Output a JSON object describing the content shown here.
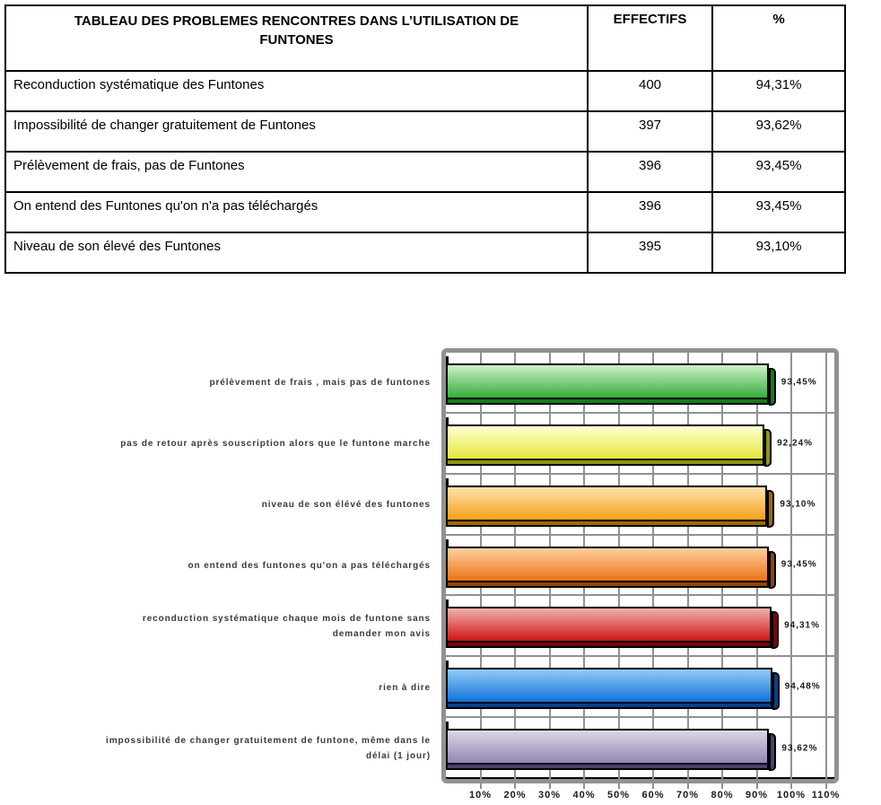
{
  "table": {
    "title_lines": [
      "TABLEAU DES PROBLEMES RENCONTRES DANS L’UTILISATION DE",
      "FUNTONES"
    ],
    "header_effectifs": "EFFECTIFS",
    "header_percent": "%",
    "rows": [
      {
        "label": "Reconduction systématique des Funtones",
        "effectif": "400",
        "percent": "94,31%"
      },
      {
        "label": "Impossibilité de changer gratuitement de Funtones",
        "effectif": "397",
        "percent": "93,62%"
      },
      {
        "label": "Prélèvement de frais, pas de Funtones",
        "effectif": "396",
        "percent": "93,45%"
      },
      {
        "label": "On entend des Funtones qu'on n'a pas téléchargés",
        "effectif": "396",
        "percent": "93,45%"
      },
      {
        "label": "Niveau de son élevé des Funtones",
        "effectif": "395",
        "percent": "93,10%"
      }
    ]
  },
  "chart_data": {
    "type": "bar",
    "orientation": "horizontal",
    "title": "",
    "xlabel": "",
    "ylabel": "",
    "xlim": [
      0,
      112.5
    ],
    "grid": "both",
    "legend": "none",
    "frame_color": "#919191",
    "gridline_color": "#919191",
    "x_ticks": [
      "10%",
      "20%",
      "30%",
      "40%",
      "50%",
      "60%",
      "70%",
      "80%",
      "90%",
      "100%",
      "110%"
    ],
    "categories": [
      "prélèvement de frais , mais pas de funtones",
      "pas de retour après souscription alors que le funtone marche",
      "niveau de son élévé des funtones",
      "on entend des funtones qu'on a pas téléchargés",
      "reconduction systématique chaque mois de funtone sans demander mon avis",
      "rien à dire",
      "impossibilité de changer gratuitement de funtone, même dans le délai (1 jour)"
    ],
    "category_label_lines": [
      [
        "prélèvement de frais , mais pas de funtones"
      ],
      [
        "pas de retour après souscription alors que le funtone marche"
      ],
      [
        "niveau de son élévé des funtones"
      ],
      [
        "on entend des funtones qu'on a pas téléchargés"
      ],
      [
        "reconduction systématique chaque mois de funtone sans",
        "demander mon avis"
      ],
      [
        "rien à dire"
      ],
      [
        "impossibilité de changer gratuitement de funtone, même dans le",
        "délai (1 jour)"
      ]
    ],
    "values": [
      93.45,
      92.24,
      93.1,
      93.45,
      94.31,
      94.48,
      93.62
    ],
    "value_labels": [
      "93,45%",
      "92,24%",
      "93,10%",
      "93,45%",
      "94,31%",
      "94,48%",
      "93,62%"
    ],
    "bar_colors": [
      {
        "name": "green",
        "light": "#cdf0c8",
        "main": "#35ad3a",
        "dark": "#157c1c"
      },
      {
        "name": "yellow",
        "light": "#ffffd2",
        "main": "#e6e63e",
        "dark": "#8e9414"
      },
      {
        "name": "amber",
        "light": "#ffe3ad",
        "main": "#f3a01a",
        "dark": "#a06708"
      },
      {
        "name": "orange",
        "light": "#ffcf9e",
        "main": "#ea7317",
        "dark": "#94430a"
      },
      {
        "name": "red",
        "light": "#f2b0ac",
        "main": "#cd1517",
        "dark": "#770508"
      },
      {
        "name": "blue",
        "light": "#93cbf7",
        "main": "#0f72da",
        "dark": "#0a3f86"
      },
      {
        "name": "lavender",
        "light": "#ded7e8",
        "main": "#9385b3",
        "dark": "#4e3f6e"
      }
    ]
  }
}
